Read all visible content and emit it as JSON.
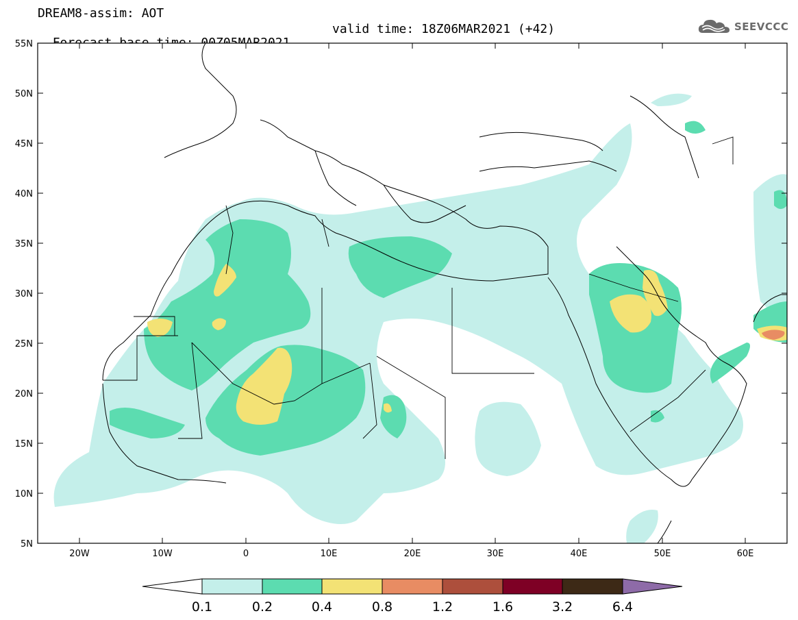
{
  "title": {
    "line1": "DREAM8-assim: AOT",
    "base_time": "Forecast base time: 00Z05MAR2021",
    "valid_time": "valid time: 18Z06MAR2021 (+42)"
  },
  "logo": {
    "text": "SEEVCCC",
    "icon": "cloud-logo-icon"
  },
  "map": {
    "projection": "lat-lon",
    "lon_range": [
      -25,
      65
    ],
    "lat_range": [
      5,
      55
    ],
    "lat_labels": [
      "55N",
      "50N",
      "45N",
      "40N",
      "35N",
      "30N",
      "25N",
      "20N",
      "15N",
      "10N",
      "5N"
    ],
    "lon_labels": [
      "20W",
      "10W",
      "0",
      "10E",
      "20E",
      "30E",
      "40E",
      "50E",
      "60E"
    ],
    "layers": [
      "coastlines",
      "country-borders",
      "aot-filled-contours"
    ]
  },
  "colorbar": {
    "levels": [
      "0.1",
      "0.2",
      "0.4",
      "0.8",
      "1.2",
      "1.6",
      "3.2",
      "6.4"
    ],
    "colors": [
      "#ffffff",
      "#c4efea",
      "#5cdcb0",
      "#f3e275",
      "#e88c63",
      "#ad4f3c",
      "#7e0025",
      "#3d2916",
      "#8e6ba8"
    ]
  }
}
